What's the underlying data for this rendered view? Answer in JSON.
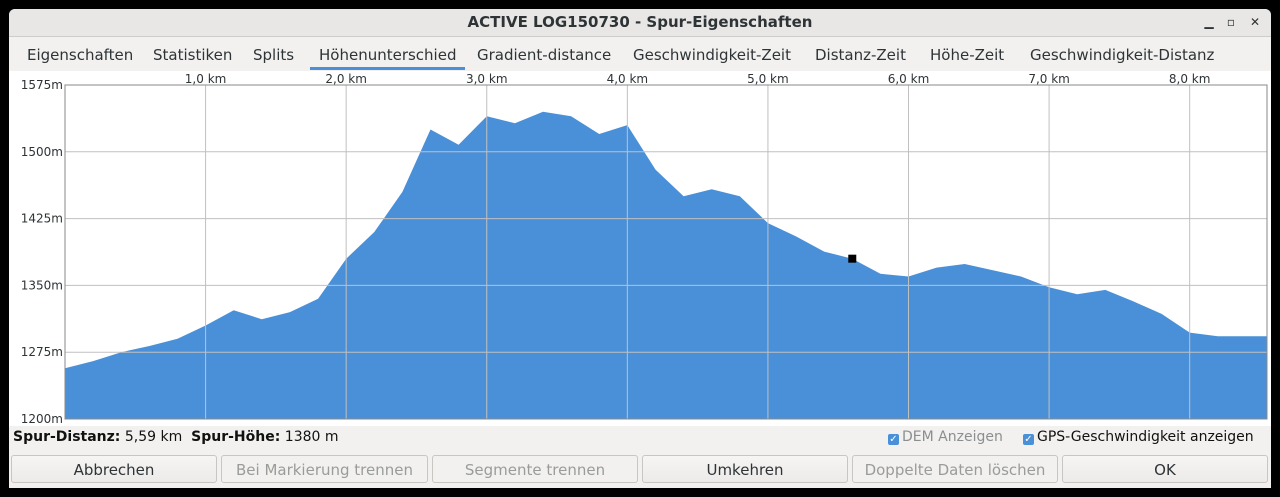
{
  "window": {
    "title": "ACTIVE LOG150730 - Spur-Eigenschaften",
    "minimize_glyph": "▁",
    "maximize_glyph": "▫",
    "close_glyph": "✕"
  },
  "tabs": [
    {
      "label": "Eigenschaften"
    },
    {
      "label": "Statistiken"
    },
    {
      "label": "Splits"
    },
    {
      "label": "Höhenunterschied",
      "active": true
    },
    {
      "label": "Gradient-distance"
    },
    {
      "label": "Geschwindigkeit-Zeit"
    },
    {
      "label": "Distanz-Zeit"
    },
    {
      "label": "Höhe-Zeit"
    },
    {
      "label": "Geschwindigkeit-Distanz"
    }
  ],
  "chart_data": {
    "type": "area",
    "x_ticks": [
      "1,0 km",
      "2,0 km",
      "3,0 km",
      "4,0 km",
      "5,0 km",
      "6,0 km",
      "7,0 km",
      "8,0 km"
    ],
    "y_ticks": [
      "1575m",
      "1500m",
      "1425m",
      "1350m",
      "1275m",
      "1200m"
    ],
    "ylim": [
      1200,
      1575
    ],
    "xlim": [
      0,
      8.55
    ],
    "fill_color": "#4a90d9",
    "grid": true,
    "x": [
      0,
      0.2,
      0.4,
      0.6,
      0.8,
      1.0,
      1.2,
      1.4,
      1.6,
      1.8,
      2.0,
      2.2,
      2.4,
      2.6,
      2.8,
      3.0,
      3.2,
      3.4,
      3.6,
      3.8,
      4.0,
      4.2,
      4.4,
      4.6,
      4.8,
      5.0,
      5.2,
      5.4,
      5.6,
      5.8,
      6.0,
      6.2,
      6.4,
      6.6,
      6.8,
      7.0,
      7.2,
      7.4,
      7.6,
      7.8,
      8.0,
      8.2,
      8.4,
      8.55
    ],
    "y": [
      1257,
      1265,
      1275,
      1282,
      1290,
      1305,
      1322,
      1312,
      1320,
      1335,
      1380,
      1410,
      1455,
      1525,
      1508,
      1540,
      1532,
      1545,
      1540,
      1520,
      1530,
      1480,
      1450,
      1458,
      1450,
      1420,
      1405,
      1388,
      1380,
      1363,
      1360,
      1370,
      1374,
      1367,
      1360,
      1348,
      1340,
      1345,
      1332,
      1318,
      1297,
      1293,
      1293,
      1293
    ],
    "marker": {
      "x": 5.6,
      "y": 1380
    }
  },
  "info": {
    "distance_label": "Spur-Distanz:",
    "distance_value": "5,59 km",
    "height_label": "Spur-Höhe:",
    "height_value": "1380 m"
  },
  "checks": [
    {
      "label": "DEM Anzeigen",
      "checked": true,
      "disabled": true
    },
    {
      "label": "GPS-Geschwindigkeit anzeigen",
      "checked": true,
      "disabled": false
    }
  ],
  "buttons": [
    {
      "label": "Abbrechen",
      "disabled": false
    },
    {
      "label": "Bei Markierung trennen",
      "disabled": true
    },
    {
      "label": "Segmente trennen",
      "disabled": true
    },
    {
      "label": "Umkehren",
      "disabled": false
    },
    {
      "label": "Doppelte Daten löschen",
      "disabled": true
    },
    {
      "label": "OK",
      "disabled": false
    }
  ]
}
